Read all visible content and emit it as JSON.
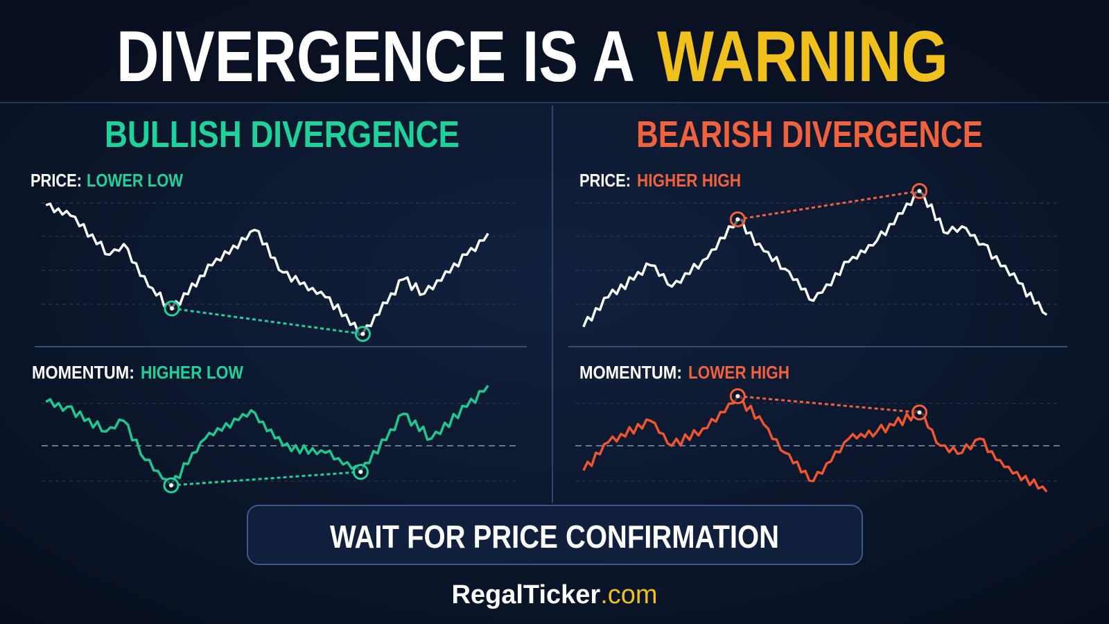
{
  "header": {
    "title_white": "DIVERGENCE IS A",
    "title_yellow": "WARNING"
  },
  "panels": [
    {
      "heading": "BULLISH DIVERGENCE",
      "price_label": "PRICE:",
      "price_note": "LOWER LOW",
      "momentum_label": "MOMENTUM:",
      "momentum_note": "HIGHER LOW"
    },
    {
      "heading": "BEARISH DIVERGENCE",
      "price_label": "PRICE:",
      "price_note": "HIGHER HIGH",
      "momentum_label": "MOMENTUM:",
      "momentum_note": "LOWER HIGH"
    }
  ],
  "callout": "WAIT FOR PRICE CONFIRMATION",
  "footer": {
    "brand": "RegalTicker",
    "domain": ".com"
  }
}
